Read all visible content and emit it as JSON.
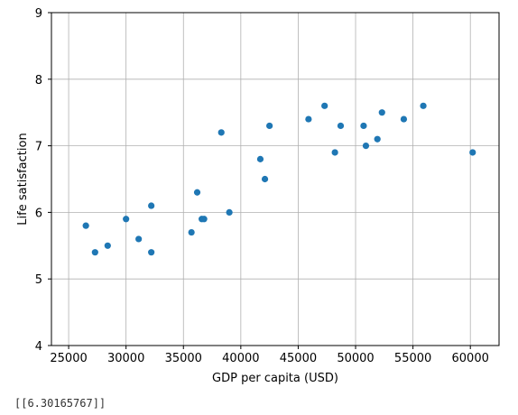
{
  "chart_data": {
    "type": "scatter",
    "title": "",
    "xlabel": "GDP per capita (USD)",
    "ylabel": "Life satisfaction",
    "xlim": [
      23500,
      62500
    ],
    "ylim": [
      4,
      9
    ],
    "xticks": [
      25000,
      30000,
      35000,
      40000,
      45000,
      50000,
      55000,
      60000
    ],
    "yticks": [
      4,
      5,
      6,
      7,
      8,
      9
    ],
    "grid": true,
    "marker_color": "#1f77b4",
    "points": [
      {
        "x": 26500,
        "y": 5.8
      },
      {
        "x": 27300,
        "y": 5.4
      },
      {
        "x": 28400,
        "y": 5.5
      },
      {
        "x": 30000,
        "y": 5.9
      },
      {
        "x": 31100,
        "y": 5.6
      },
      {
        "x": 32200,
        "y": 6.1
      },
      {
        "x": 32200,
        "y": 5.4
      },
      {
        "x": 35700,
        "y": 5.7
      },
      {
        "x": 36200,
        "y": 6.3
      },
      {
        "x": 36600,
        "y": 5.9
      },
      {
        "x": 36800,
        "y": 5.9
      },
      {
        "x": 38300,
        "y": 7.2
      },
      {
        "x": 39000,
        "y": 6.0
      },
      {
        "x": 41700,
        "y": 6.8
      },
      {
        "x": 42100,
        "y": 6.5
      },
      {
        "x": 42500,
        "y": 7.3
      },
      {
        "x": 45900,
        "y": 7.4
      },
      {
        "x": 47300,
        "y": 7.6
      },
      {
        "x": 48200,
        "y": 6.9
      },
      {
        "x": 48700,
        "y": 7.3
      },
      {
        "x": 50700,
        "y": 7.3
      },
      {
        "x": 50900,
        "y": 7.0
      },
      {
        "x": 51900,
        "y": 7.1
      },
      {
        "x": 52300,
        "y": 7.5
      },
      {
        "x": 54200,
        "y": 7.4
      },
      {
        "x": 55900,
        "y": 7.6
      },
      {
        "x": 60200,
        "y": 6.9
      }
    ]
  },
  "output": {
    "text": "[[6.30165767]]"
  }
}
